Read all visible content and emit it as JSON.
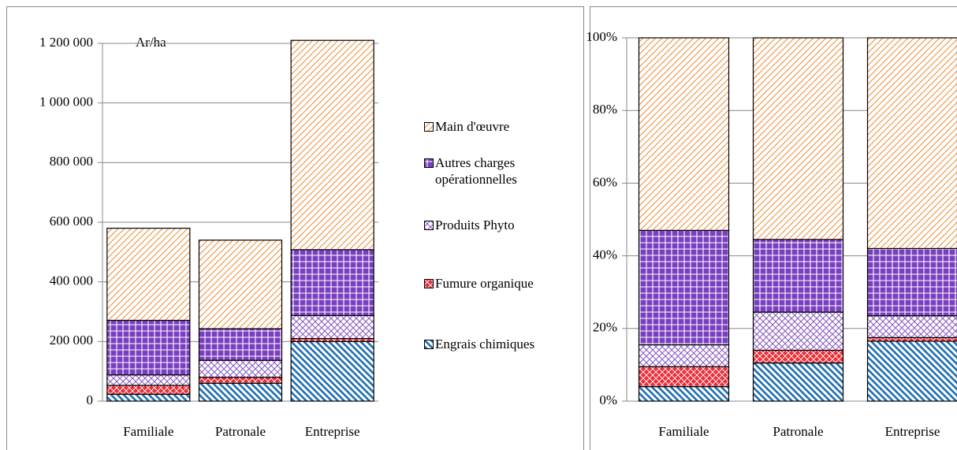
{
  "chart_data": [
    {
      "type": "bar",
      "stacked": true,
      "annotation": "Ar/ha",
      "categories": [
        "Familiale",
        "Patronale",
        "Entreprise"
      ],
      "series": [
        {
          "name": "Engrais chimiques",
          "color": "#1f6fb4",
          "values": [
            23000,
            60000,
            200000
          ]
        },
        {
          "name": "Fumure organique",
          "color": "#e8303a",
          "values": [
            30000,
            20000,
            10000
          ]
        },
        {
          "name": "Produits Phyto",
          "color": "#8a5cc4",
          "values": [
            35000,
            57000,
            77000
          ]
        },
        {
          "name": "Autres charges opérationnelles",
          "color": "#7a3fc0",
          "values": [
            183000,
            106000,
            221000
          ]
        },
        {
          "name": "Main d'œuvre",
          "color": "#f0913a",
          "values": [
            309000,
            297000,
            702000
          ]
        }
      ],
      "ylim": [
        0,
        1200000
      ],
      "yticks": [
        0,
        {
          "value": 200000,
          "label": "200 000"
        },
        {
          "value": 400000,
          "label": "400 000"
        },
        {
          "value": 600000,
          "label": "600 000"
        },
        {
          "value": 800000,
          "label": "800 000"
        },
        {
          "value": 1000000,
          "label": "1 000 000"
        },
        {
          "value": 1200000,
          "label": "1 200 000"
        }
      ],
      "grid": true,
      "legend": "right"
    },
    {
      "type": "bar",
      "stacked": true,
      "categories": [
        "Familiale",
        "Patronale",
        "Entreprise"
      ],
      "series": [
        {
          "color": "#1f6fb4",
          "values": [
            4,
            10.5,
            16.5
          ]
        },
        {
          "color": "#e8303a",
          "values": [
            5.5,
            3.5,
            1
          ]
        },
        {
          "color": "#8a5cc4",
          "values": [
            6,
            10.5,
            6
          ]
        },
        {
          "color": "#7a3fc0",
          "values": [
            31.5,
            20,
            18.5
          ]
        },
        {
          "color": "#f0913a",
          "values": [
            53,
            55.5,
            58
          ]
        }
      ],
      "ylim": [
        0,
        100
      ],
      "yticks": [
        {
          "value": 0,
          "label": "0%"
        },
        {
          "value": 20,
          "label": "20%"
        },
        {
          "value": 40,
          "label": "40%"
        },
        {
          "value": 60,
          "label": "60%"
        },
        {
          "value": 80,
          "label": "80%"
        },
        {
          "value": 100,
          "label": "100%"
        }
      ],
      "grid": true
    }
  ]
}
